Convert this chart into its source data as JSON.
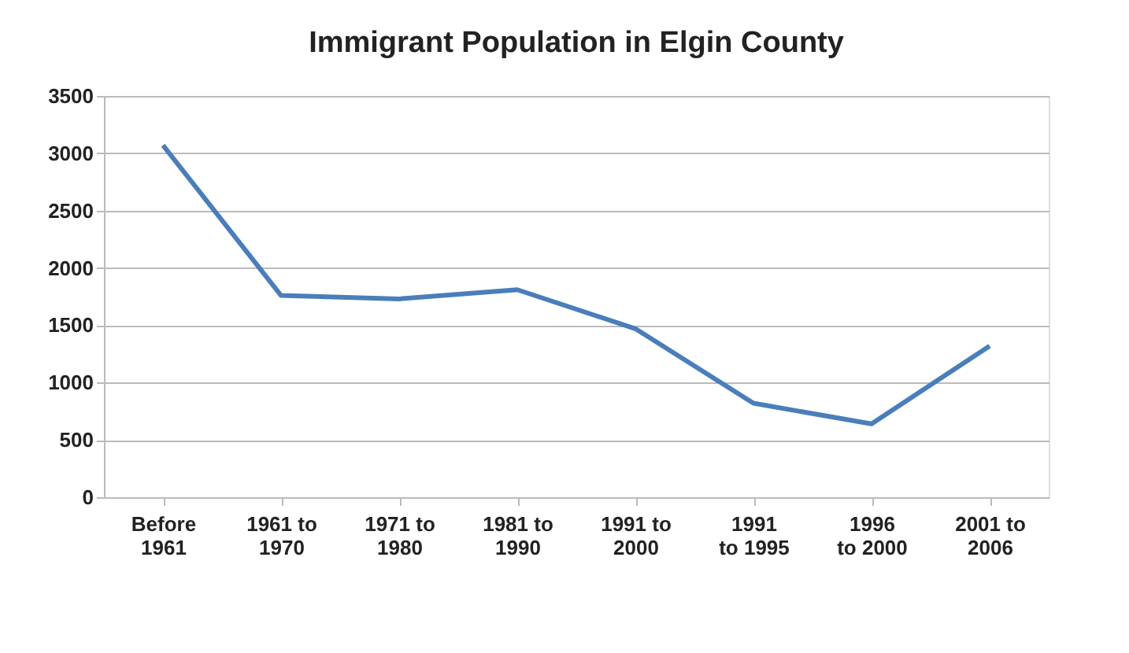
{
  "chart_data": {
    "type": "line",
    "title": "Immigrant Population in Elgin County",
    "categories": [
      "Before\n1961",
      "1961 to\n1970",
      "1971 to\n1980",
      "1981 to\n1990",
      "1991 to\n2000",
      "1991\nto 1995",
      "1996\nto 2000",
      "2001 to\n2006"
    ],
    "series": [
      {
        "color": "#4a7ebb",
        "values": [
          3070,
          1760,
          1730,
          1810,
          1470,
          820,
          640,
          1320
        ]
      }
    ],
    "ylim": [
      0,
      3500
    ],
    "yticks": [
      0,
      500,
      1000,
      1500,
      2000,
      2500,
      3000,
      3500
    ],
    "grid": "y",
    "legend": false
  }
}
